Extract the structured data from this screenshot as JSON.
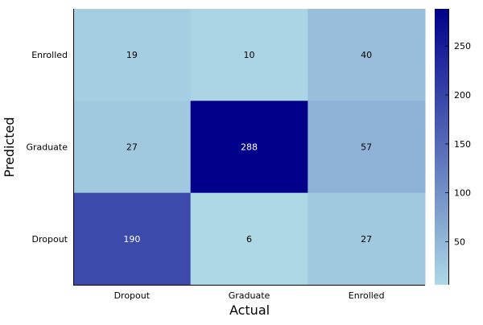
{
  "chart_data": {
    "type": "heatmap",
    "title": "",
    "xlabel": "Actual",
    "ylabel": "Predicted",
    "x_categories": [
      "Dropout",
      "Graduate",
      "Enrolled"
    ],
    "y_categories": [
      "Enrolled",
      "Graduate",
      "Dropout"
    ],
    "values": [
      [
        19,
        10,
        40
      ],
      [
        27,
        288,
        57
      ],
      [
        190,
        6,
        27
      ]
    ],
    "colorbar": {
      "min": 6,
      "max": 288,
      "ticks": [
        50,
        100,
        150,
        200,
        250
      ],
      "colors": {
        "low": "#add8e6",
        "high": "#00008b"
      }
    },
    "grid": false,
    "legend": "colorbar-right"
  }
}
